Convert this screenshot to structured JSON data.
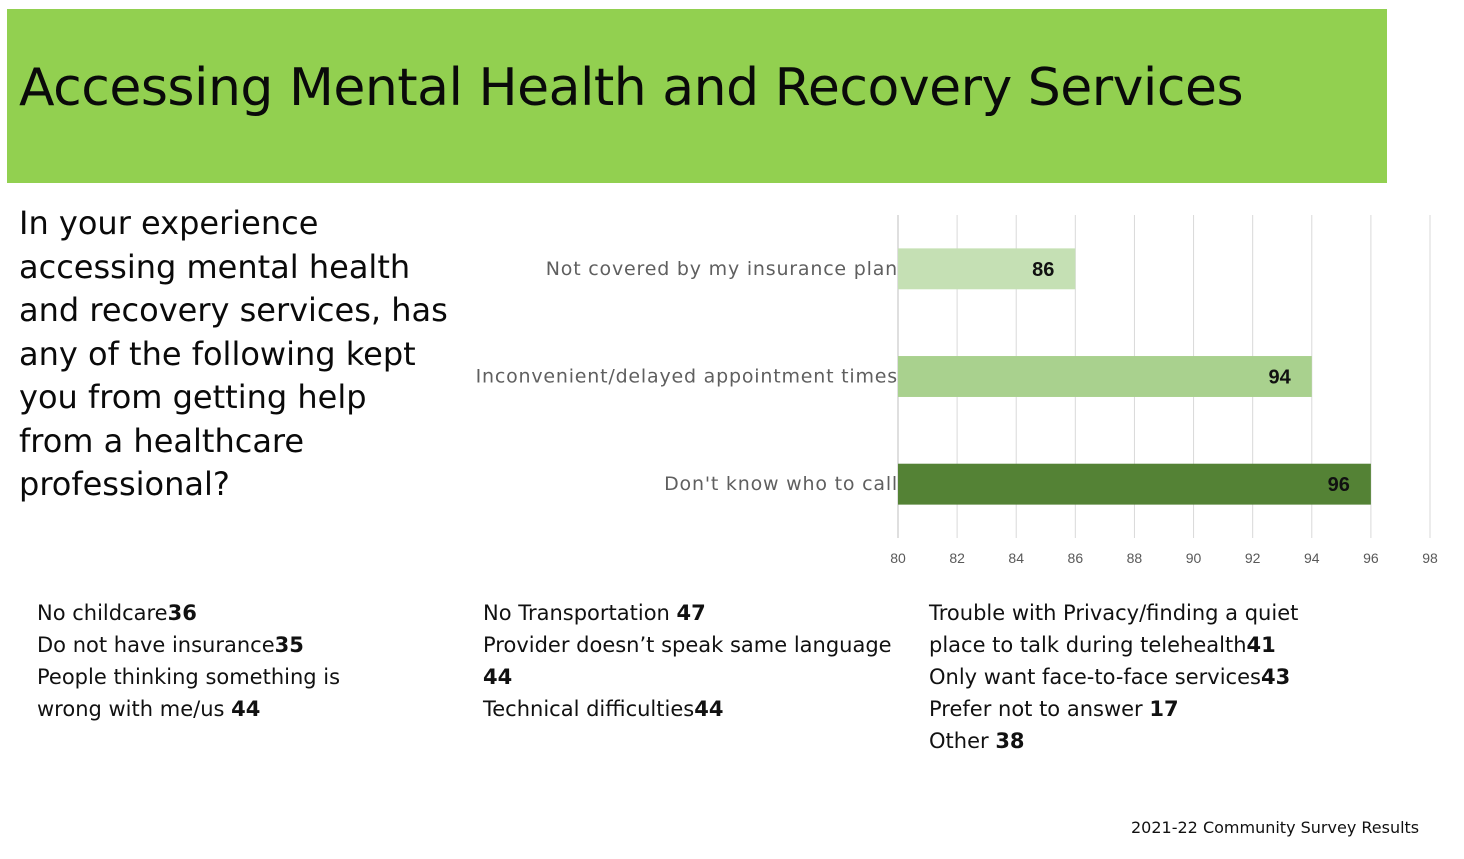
{
  "slide": {
    "title": "Accessing Mental Health and Recovery Services",
    "question": "In your experience accessing mental health and recovery services, has any of the following kept you from getting help from a healthcare professional?",
    "footer": "2021-22 Community Survey Results",
    "title_bar_color": "#92d050"
  },
  "chart_data": {
    "type": "bar",
    "orientation": "horizontal",
    "title": "",
    "xlabel": "",
    "ylabel": "",
    "categories": [
      "Not covered by my insurance plan",
      "Inconvenient/delayed appointment times",
      "Don't know who to call"
    ],
    "values": [
      86,
      94,
      96
    ],
    "colors": [
      "#c5e0b4",
      "#a9d18e",
      "#548235"
    ],
    "xlim": [
      80,
      98
    ],
    "xticks": [
      80,
      82,
      84,
      86,
      88,
      90,
      92,
      94,
      96,
      98
    ],
    "grid": true,
    "data_labels": true
  },
  "other_responses": {
    "col1": [
      {
        "label": "No childcare",
        "value": "36"
      },
      {
        "label": "Do not have insurance",
        "value": "35"
      },
      {
        "label": "People thinking something is wrong with me/us ",
        "value": "44"
      }
    ],
    "col2": [
      {
        "label": "No Transportation ",
        "value": "47"
      },
      {
        "label": "Provider doesn’t speak same language ",
        "value": "44"
      },
      {
        "label": "Technical difficulties",
        "value": "44"
      }
    ],
    "col3": [
      {
        "label": "Trouble with Privacy/finding a quiet place to talk during telehealth",
        "value": "41"
      },
      {
        "label": "Only want face-to-face services",
        "value": "43"
      },
      {
        "label": "Prefer not to answer ",
        "value": "17"
      },
      {
        "label": "Other ",
        "value": "38"
      }
    ]
  }
}
